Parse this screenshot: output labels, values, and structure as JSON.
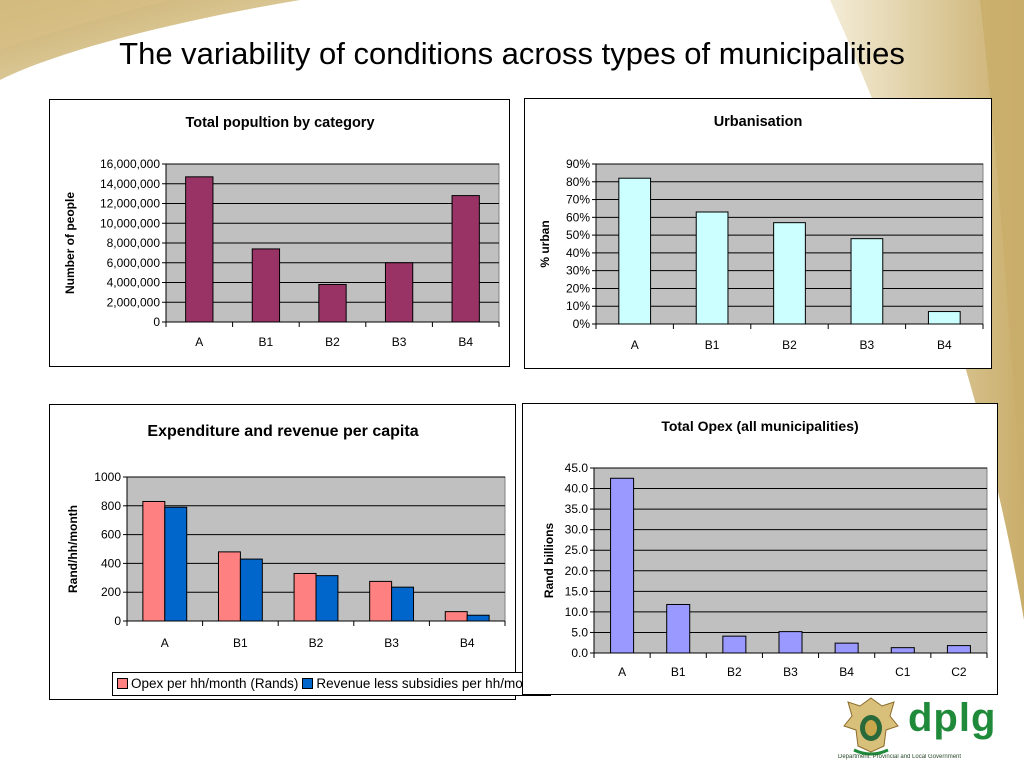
{
  "slide": {
    "title": "The variability of conditions across types of municipalities",
    "logo": {
      "name": "dplg",
      "subtitle": "Department: Provincial and Local Government",
      "colors": [
        "#1f8a3a",
        "#c8a84a"
      ]
    }
  },
  "colors": {
    "maroon": "#993366",
    "lightcyan": "#ccffff",
    "salmon": "#ff8080",
    "blue": "#0066cc",
    "lavender": "#9999ff",
    "plot_bg": "#c0c0c0",
    "gold_swoosh": "#d2b878"
  },
  "chart_data": [
    {
      "type": "bar",
      "title": "Total popultion by category",
      "ylabel": "Number of people",
      "xlabel": "",
      "categories": [
        "A",
        "B1",
        "B2",
        "B3",
        "B4"
      ],
      "values": [
        14700000,
        7400000,
        3800000,
        6000000,
        12800000
      ],
      "ylim": [
        0,
        16000000
      ],
      "yticks": [
        "0",
        "2,000,000",
        "4,000,000",
        "6,000,000",
        "8,000,000",
        "10,000,000",
        "12,000,000",
        "14,000,000",
        "16,000,000"
      ],
      "color": "#993366",
      "grid": true
    },
    {
      "type": "bar",
      "title": "Urbanisation",
      "ylabel": "% urban",
      "xlabel": "",
      "categories": [
        "A",
        "B1",
        "B2",
        "B3",
        "B4"
      ],
      "values": [
        82,
        63,
        57,
        48,
        7
      ],
      "ylim": [
        0,
        90
      ],
      "yticks": [
        "0%",
        "10%",
        "20%",
        "30%",
        "40%",
        "50%",
        "60%",
        "70%",
        "80%",
        "90%"
      ],
      "color": "#ccffff",
      "grid": true
    },
    {
      "type": "bar",
      "title": "Expenditure and revenue per capita",
      "ylabel": "Rand/hh/month",
      "xlabel": "",
      "categories": [
        "A",
        "B1",
        "B2",
        "B3",
        "B4"
      ],
      "series": [
        {
          "name": "Opex per hh/month (Rands)",
          "values": [
            830,
            480,
            330,
            275,
            65
          ],
          "color": "#ff8080"
        },
        {
          "name": "Revenue less subsidies per hh/month",
          "values": [
            790,
            430,
            315,
            235,
            40
          ],
          "color": "#0066cc"
        }
      ],
      "ylim": [
        0,
        1000
      ],
      "yticks": [
        "0",
        "200",
        "400",
        "600",
        "800",
        "1000"
      ],
      "legend": "bottom",
      "grid": true
    },
    {
      "type": "bar",
      "title": "Total Opex (all municipalities)",
      "ylabel": "Rand billions",
      "xlabel": "",
      "categories": [
        "A",
        "B1",
        "B2",
        "B3",
        "B4",
        "C1",
        "C2"
      ],
      "values": [
        42.5,
        11.8,
        4.1,
        5.2,
        2.4,
        1.3,
        1.8
      ],
      "ylim": [
        0,
        45
      ],
      "yticks": [
        "0.0",
        "5.0",
        "10.0",
        "15.0",
        "20.0",
        "25.0",
        "30.0",
        "35.0",
        "40.0",
        "45.0"
      ],
      "color": "#9999ff",
      "grid": true
    }
  ]
}
